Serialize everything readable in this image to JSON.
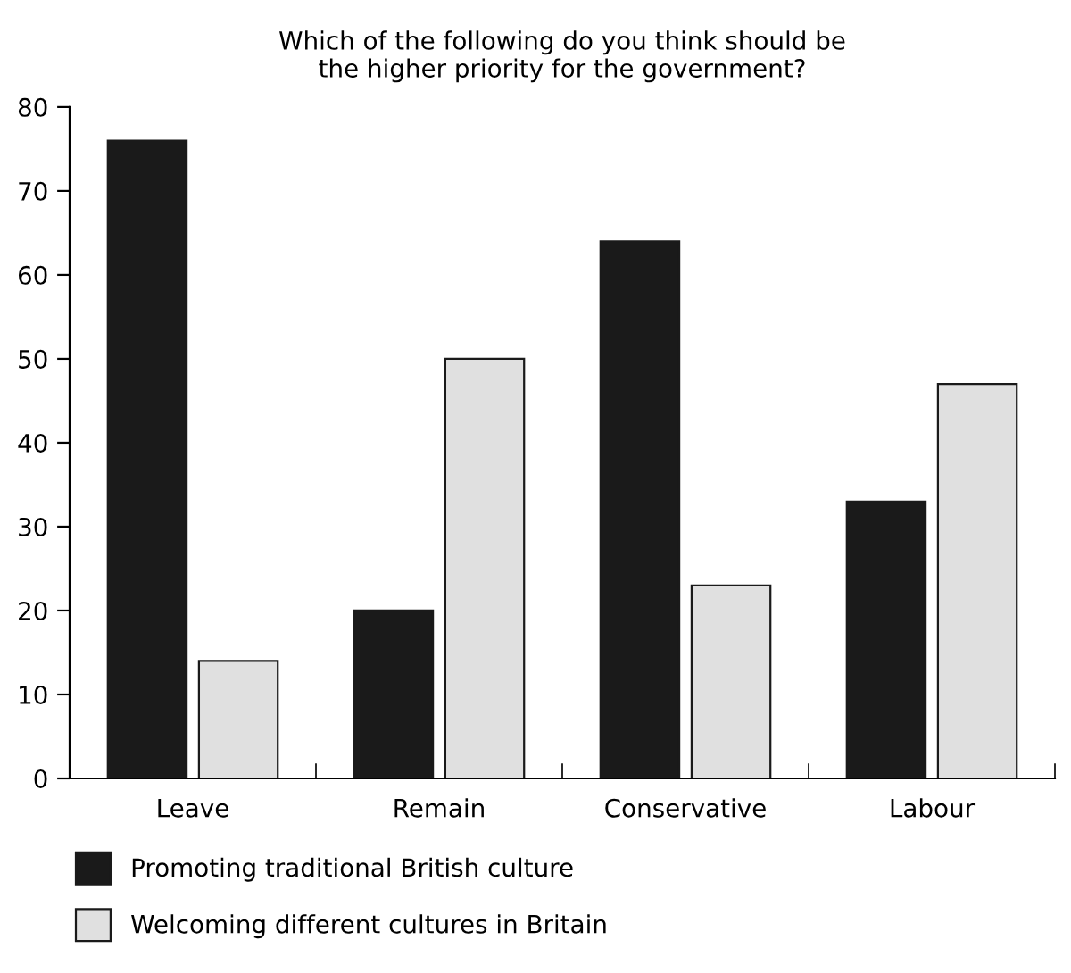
{
  "chart_data": {
    "type": "bar",
    "title": "Which of the following do you think should be\nthe higher priority for the government?",
    "categories": [
      "Leave",
      "Remain",
      "Conservative",
      "Labour"
    ],
    "series": [
      {
        "name": "Promoting traditional British culture",
        "color": "#1a1a1a",
        "values": [
          76,
          20,
          64,
          33
        ]
      },
      {
        "name": "Welcoming different cultures in Britain",
        "color": "#e0e0e0",
        "values": [
          14,
          50,
          23,
          47
        ]
      }
    ],
    "ylim": [
      0,
      80
    ],
    "yticks": [
      0,
      10,
      20,
      30,
      40,
      50,
      60,
      70,
      80
    ],
    "grid": false,
    "legend": "bottom left"
  }
}
